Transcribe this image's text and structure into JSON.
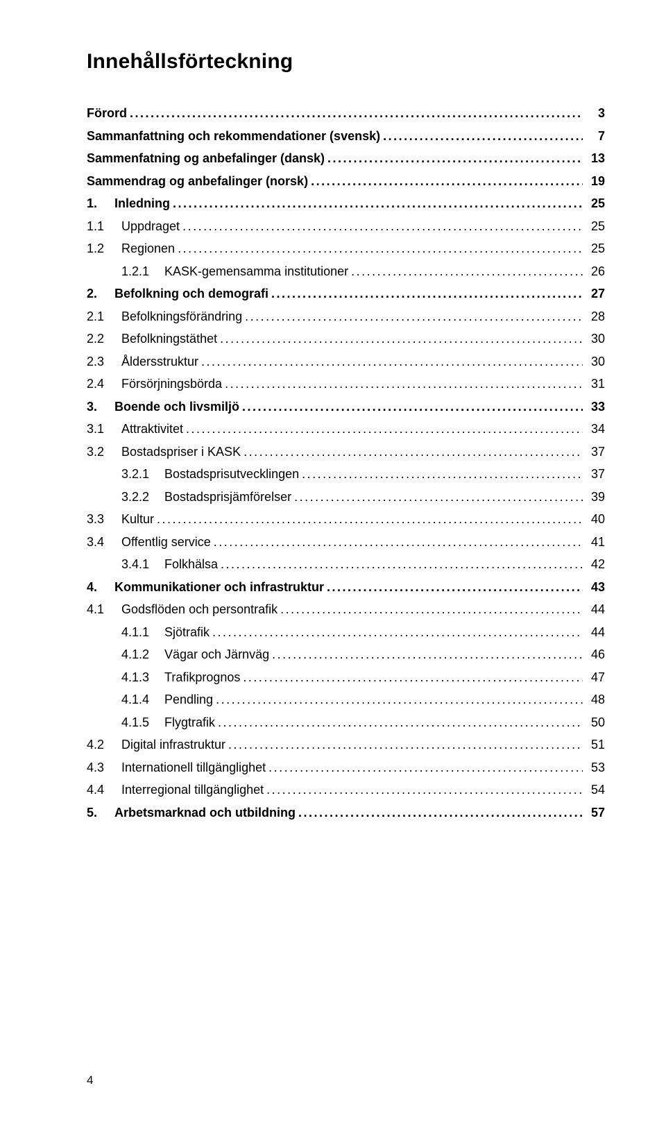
{
  "title": "Innehållsförteckning",
  "page_number": "4",
  "colors": {
    "text": "#000000",
    "background": "#ffffff"
  },
  "typography": {
    "title_fontsize_pt": 23,
    "body_fontsize_pt": 13,
    "font_family": "Arial"
  },
  "toc": [
    {
      "level": 0,
      "num": "",
      "label": "Förord",
      "page": "3"
    },
    {
      "level": 0,
      "num": "",
      "label": "Sammanfattning och rekommendationer (svensk)",
      "page": "7"
    },
    {
      "level": 0,
      "num": "",
      "label": "Sammenfatning og anbefalinger (dansk)",
      "page": "13"
    },
    {
      "level": 0,
      "num": "",
      "label": "Sammendrag og anbefalinger (norsk)",
      "page": "19"
    },
    {
      "level": 1,
      "num": "1.",
      "label": "Inledning",
      "page": "25"
    },
    {
      "level": 2,
      "num": "1.1",
      "label": "Uppdraget",
      "page": "25"
    },
    {
      "level": 2,
      "num": "1.2",
      "label": "Regionen",
      "page": "25"
    },
    {
      "level": 3,
      "num": "1.2.1",
      "label": "KASK-gemensamma institutioner",
      "page": "26"
    },
    {
      "level": 1,
      "num": "2.",
      "label": "Befolkning och demografi",
      "page": "27"
    },
    {
      "level": 2,
      "num": "2.1",
      "label": "Befolkningsförändring",
      "page": "28"
    },
    {
      "level": 2,
      "num": "2.2",
      "label": "Befolkningstäthet",
      "page": "30"
    },
    {
      "level": 2,
      "num": "2.3",
      "label": "Åldersstruktur",
      "page": "30"
    },
    {
      "level": 2,
      "num": "2.4",
      "label": "Försörjningsbörda",
      "page": "31"
    },
    {
      "level": 1,
      "num": "3.",
      "label": "Boende och livsmiljö",
      "page": "33"
    },
    {
      "level": 2,
      "num": "3.1",
      "label": "Attraktivitet",
      "page": "34"
    },
    {
      "level": 2,
      "num": "3.2",
      "label": "Bostadspriser i KASK",
      "page": "37"
    },
    {
      "level": 3,
      "num": "3.2.1",
      "label": "Bostadsprisutvecklingen",
      "page": "37"
    },
    {
      "level": 3,
      "num": "3.2.2",
      "label": "Bostadsprisjämförelser",
      "page": "39"
    },
    {
      "level": 2,
      "num": "3.3",
      "label": "Kultur",
      "page": "40"
    },
    {
      "level": 2,
      "num": "3.4",
      "label": "Offentlig service",
      "page": "41"
    },
    {
      "level": 3,
      "num": "3.4.1",
      "label": "Folkhälsa",
      "page": "42"
    },
    {
      "level": 1,
      "num": "4.",
      "label": "Kommunikationer och infrastruktur",
      "page": "43"
    },
    {
      "level": 2,
      "num": "4.1",
      "label": "Godsflöden och persontrafik",
      "page": "44"
    },
    {
      "level": 3,
      "num": "4.1.1",
      "label": "Sjötrafik",
      "page": "44"
    },
    {
      "level": 3,
      "num": "4.1.2",
      "label": "Vägar och Järnväg",
      "page": "46"
    },
    {
      "level": 3,
      "num": "4.1.3",
      "label": "Trafikprognos",
      "page": "47"
    },
    {
      "level": 3,
      "num": "4.1.4",
      "label": "Pendling",
      "page": "48"
    },
    {
      "level": 3,
      "num": "4.1.5",
      "label": "Flygtrafik",
      "page": "50"
    },
    {
      "level": 2,
      "num": "4.2",
      "label": "Digital infrastruktur",
      "page": "51"
    },
    {
      "level": 2,
      "num": "4.3",
      "label": "Internationell tillgänglighet",
      "page": "53"
    },
    {
      "level": 2,
      "num": "4.4",
      "label": "Interregional tillgänglighet",
      "page": "54"
    },
    {
      "level": 1,
      "num": "5.",
      "label": "Arbetsmarknad och utbildning",
      "page": "57"
    }
  ]
}
